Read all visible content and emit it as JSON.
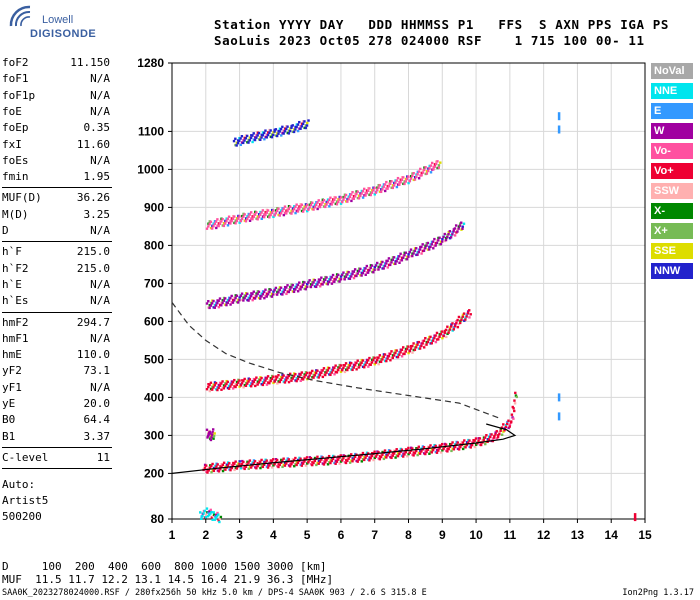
{
  "logo": {
    "line1": "Lowell",
    "line2": "DIGISONDE"
  },
  "header": {
    "line1": "Station YYYY DAY   DDD HHMMSS P1   FFS  S AXN PPS IGA PS",
    "line2": "SaoLuis 2023 Oct05 278 024000 RSF    1 715 100 00- 11"
  },
  "params": {
    "group1": [
      {
        "label": "foF2",
        "value": "11.150"
      },
      {
        "label": "foF1",
        "value": "N/A"
      },
      {
        "label": "foF1p",
        "value": "N/A"
      },
      {
        "label": "foE",
        "value": "N/A"
      },
      {
        "label": "foEp",
        "value": "0.35"
      },
      {
        "label": "fxI",
        "value": "11.60"
      },
      {
        "label": "foEs",
        "value": "N/A"
      },
      {
        "label": "fmin",
        "value": "1.95"
      }
    ],
    "group2": [
      {
        "label": "MUF(D)",
        "value": "36.26"
      },
      {
        "label": "M(D)",
        "value": "3.25"
      },
      {
        "label": "D",
        "value": "N/A"
      }
    ],
    "group3": [
      {
        "label": "h`F",
        "value": "215.0"
      },
      {
        "label": "h`F2",
        "value": "215.0"
      },
      {
        "label": "h`E",
        "value": "N/A"
      },
      {
        "label": "h`Es",
        "value": "N/A"
      }
    ],
    "group4": [
      {
        "label": "hmF2",
        "value": "294.7"
      },
      {
        "label": "hmF1",
        "value": "N/A"
      },
      {
        "label": "hmE",
        "value": "110.0"
      },
      {
        "label": "yF2",
        "value": "73.1"
      },
      {
        "label": "yF1",
        "value": "N/A"
      },
      {
        "label": "yE",
        "value": "20.0"
      },
      {
        "label": "B0",
        "value": "64.4"
      },
      {
        "label": "B1",
        "value": "3.37"
      }
    ],
    "group5": [
      {
        "label": "C-level",
        "value": "11"
      }
    ],
    "auto": {
      "line1": "Auto:",
      "line2": "Artist5",
      "line3": "500200"
    }
  },
  "bottom": {
    "d_row": "D     100  200  400  600  800 1000 1500 3000 [km]",
    "muf_row": "MUF  11.5 11.7 12.2 13.1 14.5 16.4 21.9 36.3 [MHz]"
  },
  "footer": {
    "left": "SAA0K_2023278024000.RSF / 280fx256h 50 kHz 5.0 km / DPS-4 SAA0K 903 / 2.6 S 315.8 E",
    "right": "Ion2Png 1.3.17"
  },
  "legend": [
    {
      "label": "NoVal",
      "color": "#a8a8a8"
    },
    {
      "label": "NNE",
      "color": "#00e5ee"
    },
    {
      "label": "E",
      "color": "#3399ff"
    },
    {
      "label": "W",
      "color": "#a000a0"
    },
    {
      "label": "Vo-",
      "color": "#ff50a0"
    },
    {
      "label": "Vo+",
      "color": "#ee0033"
    },
    {
      "label": "SSW",
      "color": "#ffb0b0"
    },
    {
      "label": "X-",
      "color": "#008800"
    },
    {
      "label": "X+",
      "color": "#77bb55"
    },
    {
      "label": "SSE",
      "color": "#dddd00"
    },
    {
      "label": "NNW",
      "color": "#2222cc"
    }
  ],
  "chart_data": {
    "type": "scatter",
    "title": "",
    "xlabel": "",
    "ylabel": "",
    "xlim": [
      1,
      15
    ],
    "ylim": [
      80,
      1280
    ],
    "xticks": [
      "1",
      "2",
      "3",
      "4",
      "5",
      "6",
      "7",
      "8",
      "9",
      "10",
      "11",
      "12",
      "13",
      "14",
      "15"
    ],
    "yticks": [
      "80",
      "200",
      "300",
      "400",
      "500",
      "600",
      "700",
      "800",
      "900",
      "1000",
      "1100",
      "1280"
    ],
    "grid": true,
    "echo_traces": [
      {
        "name": "E-region echoes",
        "x": [
          1.8,
          2.0,
          2.2,
          2.4
        ],
        "y": [
          90,
          100,
          90,
          85
        ],
        "color": "#00e5ee"
      },
      {
        "name": "F trace 1st hop",
        "x": [
          1.9,
          3,
          4,
          5,
          6,
          7,
          8,
          9,
          10,
          10.5,
          11,
          11.15
        ],
        "y": [
          215,
          225,
          230,
          235,
          240,
          250,
          260,
          270,
          285,
          300,
          340,
          430
        ],
        "color": "#ee0033"
      },
      {
        "name": "Sporadic echoes",
        "x": [
          2.0,
          2.1,
          2.2
        ],
        "y": [
          310,
          300,
          310
        ],
        "color": "#a000a0"
      },
      {
        "name": "F trace 2nd hop",
        "x": [
          2.0,
          3,
          4,
          5,
          6,
          7,
          8,
          9,
          9.8
        ],
        "y": [
          430,
          440,
          450,
          460,
          480,
          500,
          530,
          570,
          630
        ],
        "color": "#ee0033"
      },
      {
        "name": "F trace 3rd hop",
        "x": [
          2.0,
          3,
          4,
          5,
          6,
          7,
          8,
          9,
          9.6
        ],
        "y": [
          645,
          665,
          680,
          700,
          720,
          745,
          780,
          820,
          860
        ],
        "color": "#a000a0"
      },
      {
        "name": "F trace 4th hop",
        "x": [
          2.0,
          3,
          4,
          5,
          6,
          7,
          8,
          8.9
        ],
        "y": [
          855,
          875,
          890,
          905,
          925,
          950,
          980,
          1020
        ],
        "color": "#ff50a0"
      },
      {
        "name": "F trace 5th hop",
        "x": [
          2.8,
          3.5,
          4,
          4.5,
          5.0
        ],
        "y": [
          1075,
          1090,
          1100,
          1110,
          1125
        ],
        "color": "#2222cc"
      }
    ],
    "profile_solid": {
      "x": [
        1.0,
        2.5,
        4,
        5.5,
        7,
        8.5,
        10,
        10.8,
        11.15,
        10.9,
        10.3
      ],
      "y": [
        200,
        215,
        228,
        240,
        252,
        265,
        280,
        290,
        300,
        315,
        330
      ]
    },
    "profile_dashed": {
      "x": [
        1.0,
        1.5,
        2.0,
        2.6,
        3.3,
        4.2,
        5.2,
        6.5,
        8.0,
        9.5,
        10.7
      ],
      "y": [
        650,
        590,
        550,
        515,
        490,
        465,
        445,
        425,
        405,
        385,
        345
      ]
    },
    "extra_marks": [
      {
        "x": 12.45,
        "y": 1105,
        "color": "#3399ff"
      },
      {
        "x": 12.45,
        "y": 1140,
        "color": "#3399ff"
      },
      {
        "x": 12.45,
        "y": 400,
        "color": "#3399ff"
      },
      {
        "x": 12.45,
        "y": 350,
        "color": "#3399ff"
      },
      {
        "x": 14.7,
        "y": 85,
        "color": "#ee0033"
      }
    ]
  }
}
